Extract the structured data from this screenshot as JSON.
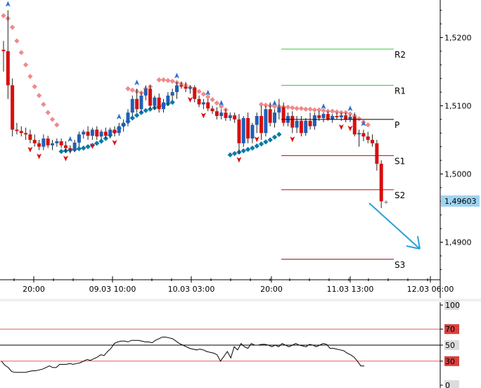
{
  "chart_data": [
    {
      "type": "candlestick",
      "title": "",
      "y_axis": {
        "side": "right",
        "ticks": [
          "1,5200",
          "1,5100",
          "1,5000",
          "1,4900"
        ],
        "tick_values": [
          1.52,
          1.51,
          1.5,
          1.49
        ],
        "range": [
          1.4845,
          1.5255
        ],
        "current_price_label": "1,49603",
        "current_price": 1.49603,
        "current_price_color": "#9fd3f0"
      },
      "x_axis": {
        "ticks": [
          "20:00",
          "09.03 10:00",
          "10.03 03:00",
          "20:00",
          "11.03 13:00",
          "12.03 06:00"
        ]
      },
      "pivot_levels": [
        {
          "name": "R2",
          "value": 1.5183,
          "color": "#33cc33"
        },
        {
          "name": "R1",
          "value": 1.513,
          "color": "#33cc33"
        },
        {
          "name": "P",
          "value": 1.508,
          "color": "#000000"
        },
        {
          "name": "S1",
          "value": 1.5027,
          "color": "#cc0000"
        },
        {
          "name": "S2",
          "value": 1.4977,
          "color": "#cc0000"
        },
        {
          "name": "S3",
          "value": 1.4875,
          "color": "#880000"
        }
      ],
      "candles": [
        [
          1.5182,
          1.5195,
          1.515,
          1.518
        ],
        [
          1.518,
          1.524,
          1.511,
          1.513
        ],
        [
          1.513,
          1.514,
          1.5055,
          1.5065
        ],
        [
          1.5065,
          1.5075,
          1.5058,
          1.5063
        ],
        [
          1.5063,
          1.507,
          1.5055,
          1.506
        ],
        [
          1.506,
          1.5068,
          1.505,
          1.5058
        ],
        [
          1.5058,
          1.5065,
          1.5045,
          1.505
        ],
        [
          1.505,
          1.5058,
          1.504,
          1.5045
        ],
        [
          1.5045,
          1.505,
          1.5035,
          1.504
        ],
        [
          1.504,
          1.5058,
          1.5035,
          1.5052
        ],
        [
          1.5052,
          1.5056,
          1.5038,
          1.5042
        ],
        [
          1.5042,
          1.505,
          1.5035,
          1.5045
        ],
        [
          1.5045,
          1.5052,
          1.504,
          1.5048
        ],
        [
          1.5048,
          1.5052,
          1.5038,
          1.5042
        ],
        [
          1.5042,
          1.5048,
          1.5032,
          1.5038
        ],
        [
          1.5038,
          1.5042,
          1.503,
          1.5035
        ],
        [
          1.5035,
          1.505,
          1.5032,
          1.5046
        ],
        [
          1.5046,
          1.5062,
          1.504,
          1.5058
        ],
        [
          1.5058,
          1.5065,
          1.5052,
          1.5062
        ],
        [
          1.5062,
          1.507,
          1.505,
          1.5056
        ],
        [
          1.5056,
          1.5068,
          1.505,
          1.5065
        ],
        [
          1.5065,
          1.507,
          1.505,
          1.5055
        ],
        [
          1.5055,
          1.5065,
          1.505,
          1.5062
        ],
        [
          1.5062,
          1.5068,
          1.5052,
          1.5056
        ],
        [
          1.5056,
          1.5068,
          1.5052,
          1.5065
        ],
        [
          1.5065,
          1.507,
          1.5055,
          1.506
        ],
        [
          1.506,
          1.5075,
          1.5056,
          1.507
        ],
        [
          1.507,
          1.508,
          1.5062,
          1.5075
        ],
        [
          1.5075,
          1.5095,
          1.507,
          1.509
        ],
        [
          1.509,
          1.5115,
          1.5085,
          1.511
        ],
        [
          1.511,
          1.5125,
          1.509,
          1.5095
        ],
        [
          1.5095,
          1.512,
          1.509,
          1.5115
        ],
        [
          1.5115,
          1.513,
          1.5108,
          1.5125
        ],
        [
          1.5125,
          1.513,
          1.5095,
          1.51
        ],
        [
          1.51,
          1.5115,
          1.5095,
          1.5112
        ],
        [
          1.5112,
          1.5118,
          1.509,
          1.5095
        ],
        [
          1.5095,
          1.511,
          1.509,
          1.5105
        ],
        [
          1.5105,
          1.512,
          1.51,
          1.5115
        ],
        [
          1.5115,
          1.5125,
          1.5108,
          1.512
        ],
        [
          1.512,
          1.5135,
          1.511,
          1.513
        ],
        [
          1.513,
          1.5135,
          1.5125,
          1.5128
        ],
        [
          1.5128,
          1.5135,
          1.512,
          1.5125
        ],
        [
          1.5125,
          1.513,
          1.5118,
          1.5127
        ],
        [
          1.5127,
          1.513,
          1.5105,
          1.511
        ],
        [
          1.511,
          1.5115,
          1.5098,
          1.5102
        ],
        [
          1.5102,
          1.511,
          1.5095,
          1.5105
        ],
        [
          1.5105,
          1.511,
          1.5092,
          1.5096
        ],
        [
          1.5096,
          1.51,
          1.5088,
          1.5092
        ],
        [
          1.5092,
          1.5098,
          1.508,
          1.5085
        ],
        [
          1.5085,
          1.5095,
          1.508,
          1.509
        ],
        [
          1.509,
          1.5095,
          1.5078,
          1.5082
        ],
        [
          1.5082,
          1.509,
          1.5078,
          1.5086
        ],
        [
          1.5086,
          1.509,
          1.5075,
          1.508
        ],
        [
          1.508,
          1.5088,
          1.503,
          1.5045
        ],
        [
          1.5045,
          1.5085,
          1.504,
          1.5082
        ],
        [
          1.5082,
          1.509,
          1.5045,
          1.5052
        ],
        [
          1.5052,
          1.5075,
          1.5045,
          1.5072
        ],
        [
          1.5072,
          1.509,
          1.506,
          1.5085
        ],
        [
          1.5085,
          1.51,
          1.505,
          1.506
        ],
        [
          1.506,
          1.51,
          1.5055,
          1.5095
        ],
        [
          1.5095,
          1.5105,
          1.507,
          1.5075
        ],
        [
          1.5075,
          1.5095,
          1.5068,
          1.509
        ],
        [
          1.509,
          1.511,
          1.508,
          1.5098
        ],
        [
          1.5098,
          1.5105,
          1.507,
          1.5075
        ],
        [
          1.5075,
          1.509,
          1.507,
          1.5085
        ],
        [
          1.5085,
          1.5092,
          1.506,
          1.5068
        ],
        [
          1.5068,
          1.5085,
          1.506,
          1.5078
        ],
        [
          1.5078,
          1.5085,
          1.5055,
          1.506
        ],
        [
          1.506,
          1.5082,
          1.5056,
          1.5078
        ],
        [
          1.5078,
          1.509,
          1.5065,
          1.507
        ],
        [
          1.507,
          1.509,
          1.5065,
          1.5086
        ],
        [
          1.5086,
          1.5092,
          1.5078,
          1.5082
        ],
        [
          1.5082,
          1.509,
          1.5076,
          1.5088
        ],
        [
          1.5088,
          1.5092,
          1.5078,
          1.508
        ],
        [
          1.508,
          1.5088,
          1.5075,
          1.5085
        ],
        [
          1.5085,
          1.509,
          1.508,
          1.5083
        ],
        [
          1.5083,
          1.509,
          1.5078,
          1.5086
        ],
        [
          1.5086,
          1.509,
          1.5076,
          1.508
        ],
        [
          1.508,
          1.5087,
          1.5076,
          1.5084
        ],
        [
          1.5084,
          1.509,
          1.5055,
          1.5058
        ],
        [
          1.5058,
          1.5065,
          1.504,
          1.506
        ],
        [
          1.506,
          1.5065,
          1.5048,
          1.5055
        ],
        [
          1.5055,
          1.5062,
          1.5045,
          1.505
        ],
        [
          1.505,
          1.5058,
          1.504,
          1.5045
        ],
        [
          1.5045,
          1.505,
          1.5005,
          1.5015
        ],
        [
          1.5015,
          1.502,
          1.495,
          1.496
        ]
      ],
      "sar_above": [
        [
          0,
          1.5232
        ],
        [
          1,
          1.5228
        ],
        [
          2,
          1.5215
        ],
        [
          3,
          1.5195
        ],
        [
          4,
          1.5178
        ],
        [
          5,
          1.516
        ],
        [
          6,
          1.5143
        ],
        [
          7,
          1.5128
        ],
        [
          8,
          1.5115
        ],
        [
          9,
          1.5102
        ],
        [
          10,
          1.509
        ],
        [
          11,
          1.508
        ],
        [
          12,
          1.5072
        ],
        [
          28,
          1.5125
        ],
        [
          29,
          1.5123
        ],
        [
          30,
          1.5121
        ],
        [
          31,
          1.5119
        ],
        [
          32,
          1.5125
        ],
        [
          33,
          1.5128
        ],
        [
          35,
          1.5138
        ],
        [
          36,
          1.5138
        ],
        [
          37,
          1.5137
        ],
        [
          38,
          1.5136
        ],
        [
          39,
          1.5134
        ],
        [
          40,
          1.5132
        ],
        [
          41,
          1.513
        ],
        [
          42,
          1.5127
        ],
        [
          43,
          1.5124
        ],
        [
          44,
          1.5121
        ],
        [
          45,
          1.5117
        ],
        [
          46,
          1.5113
        ],
        [
          47,
          1.5109
        ],
        [
          48,
          1.5104
        ],
        [
          49,
          1.5099
        ],
        [
          50,
          1.5094
        ],
        [
          58,
          1.5102
        ],
        [
          59,
          1.5101
        ],
        [
          60,
          1.51
        ],
        [
          61,
          1.5099
        ],
        [
          62,
          1.5099
        ],
        [
          63,
          1.5098
        ],
        [
          64,
          1.5098
        ],
        [
          65,
          1.5097
        ],
        [
          66,
          1.5096
        ],
        [
          67,
          1.5096
        ],
        [
          68,
          1.5095
        ],
        [
          69,
          1.5095
        ],
        [
          70,
          1.5094
        ],
        [
          71,
          1.5094
        ],
        [
          72,
          1.5093
        ],
        [
          73,
          1.5092
        ],
        [
          74,
          1.5092
        ],
        [
          75,
          1.5091
        ],
        [
          76,
          1.509
        ],
        [
          77,
          1.509
        ],
        [
          78,
          1.5088
        ],
        [
          79,
          1.5085
        ],
        [
          80,
          1.5081
        ],
        [
          81,
          1.5076
        ],
        [
          82,
          1.5072
        ]
      ],
      "sar_below": [
        [
          13,
          1.5033
        ],
        [
          14,
          1.5034
        ],
        [
          15,
          1.5035
        ],
        [
          16,
          1.5036
        ],
        [
          17,
          1.5037
        ],
        [
          18,
          1.5038
        ],
        [
          19,
          1.504
        ],
        [
          20,
          1.5042
        ],
        [
          21,
          1.5045
        ],
        [
          22,
          1.5048
        ],
        [
          23,
          1.5052
        ],
        [
          24,
          1.5057
        ],
        [
          25,
          1.5062
        ],
        [
          26,
          1.5067
        ],
        [
          27,
          1.5072
        ],
        [
          28,
          1.5077
        ],
        [
          29,
          1.5082
        ],
        [
          30,
          1.5086
        ],
        [
          31,
          1.509
        ],
        [
          32,
          1.5093
        ],
        [
          33,
          1.5095
        ],
        [
          34,
          1.5097
        ],
        [
          35,
          1.5099
        ],
        [
          36,
          1.5101
        ],
        [
          37,
          1.5103
        ],
        [
          38,
          1.5105
        ],
        [
          51,
          1.5028
        ],
        [
          52,
          1.503
        ],
        [
          53,
          1.5032
        ],
        [
          54,
          1.5034
        ],
        [
          55,
          1.5036
        ],
        [
          56,
          1.5038
        ],
        [
          57,
          1.5041
        ],
        [
          58,
          1.5044
        ],
        [
          59,
          1.5047
        ],
        [
          60,
          1.505
        ],
        [
          61,
          1.5054
        ],
        [
          62,
          1.5058
        ]
      ],
      "fractals_up": [
        1,
        15,
        26,
        30,
        39,
        46,
        49,
        61,
        72,
        78,
        81
      ],
      "fractals_down": [
        6,
        8,
        14,
        20,
        25,
        42,
        45,
        53,
        57,
        65,
        76,
        78
      ]
    },
    {
      "type": "line",
      "title": "",
      "y_axis": {
        "side": "right",
        "ticks": [
          "100",
          "70",
          "50",
          "30",
          "0"
        ],
        "tick_values": [
          100,
          70,
          50,
          30,
          0
        ],
        "range": [
          0,
          100
        ],
        "highlight": {
          "70": "#d94040",
          "30": "#d94040"
        }
      },
      "levels": [
        {
          "value": 70,
          "color": "#e06060"
        },
        {
          "value": 50,
          "color": "#000000"
        },
        {
          "value": 30,
          "color": "#e06060"
        }
      ],
      "values": [
        30,
        25,
        22,
        17,
        16,
        16,
        16,
        16,
        17,
        18,
        18,
        19,
        20,
        22,
        24,
        22,
        22,
        26,
        26,
        26,
        27,
        26,
        27,
        28,
        30,
        32,
        31,
        33,
        35,
        38,
        37,
        42,
        46,
        52,
        54,
        55,
        55,
        54,
        56,
        56,
        56,
        55,
        54,
        54,
        53,
        56,
        58,
        60,
        60,
        59,
        58,
        55,
        52,
        50,
        48,
        46,
        45,
        44,
        45,
        44,
        42,
        41,
        40,
        38,
        30,
        36,
        42,
        34,
        48,
        44,
        52,
        48,
        46,
        52,
        50,
        50,
        51,
        51,
        50,
        48,
        50,
        48,
        52,
        50,
        48,
        50,
        52,
        50,
        49,
        48,
        51,
        50,
        48,
        50,
        52,
        51,
        46,
        46,
        45,
        44,
        43,
        40,
        38,
        35,
        30,
        24,
        24
      ]
    }
  ]
}
